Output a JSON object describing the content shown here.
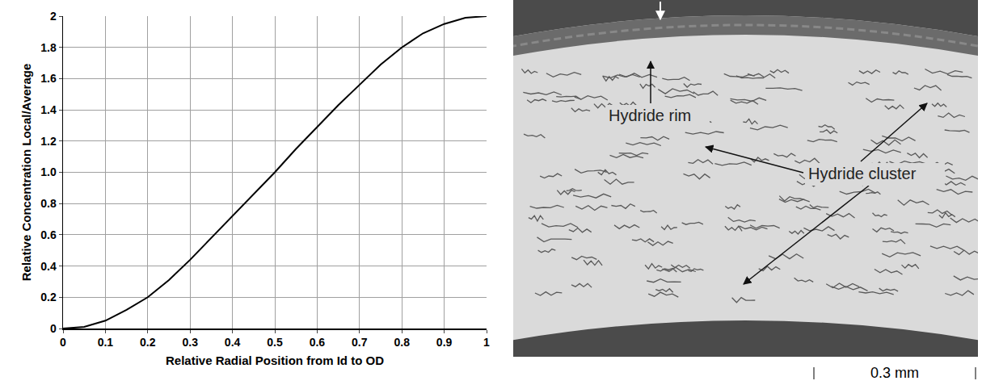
{
  "chart_data": {
    "type": "line",
    "xlabel": "Relative Radial Position from Id to OD",
    "ylabel": "Relative Concentration Local/Average",
    "x": [
      0,
      0.05,
      0.1,
      0.15,
      0.2,
      0.25,
      0.3,
      0.35,
      0.4,
      0.45,
      0.5,
      0.55,
      0.6,
      0.65,
      0.7,
      0.75,
      0.8,
      0.85,
      0.9,
      0.95,
      1
    ],
    "values": [
      0,
      0.01,
      0.05,
      0.12,
      0.2,
      0.31,
      0.44,
      0.58,
      0.72,
      0.86,
      1.0,
      1.15,
      1.29,
      1.43,
      1.56,
      1.69,
      1.8,
      1.89,
      1.95,
      1.99,
      2.0
    ],
    "color": "#000000",
    "xlim": [
      0,
      1
    ],
    "ylim": [
      0,
      2
    ],
    "xticks": [
      0,
      0.1,
      0.2,
      0.3,
      0.4,
      0.5,
      0.6,
      0.7,
      0.8,
      0.9,
      1
    ],
    "yticks": [
      0,
      0.2,
      0.4,
      0.6,
      0.8,
      {
        "value": 1,
        "label": "1.0"
      },
      1.2,
      1.4,
      1.6,
      1.8,
      2
    ],
    "grid": true
  },
  "micrograph": {
    "labels": {
      "rim": "Hydride rim",
      "cluster": "Hydride cluster"
    },
    "scale_bar": "0.3 mm"
  }
}
